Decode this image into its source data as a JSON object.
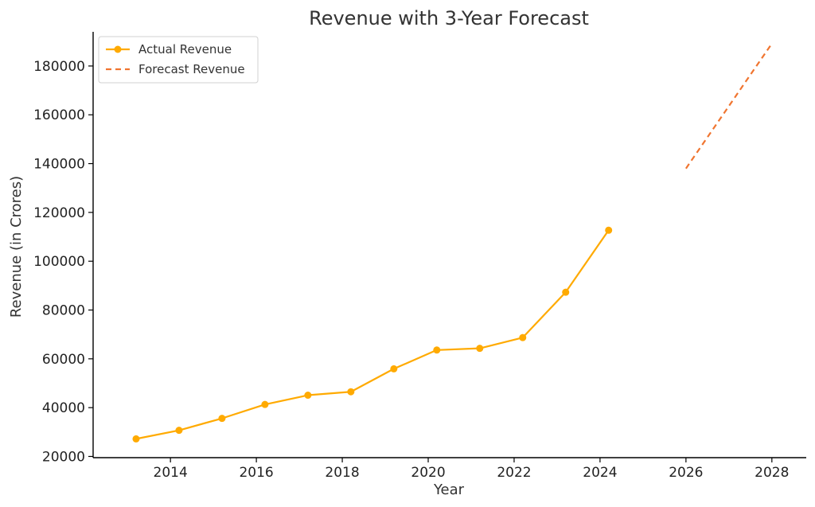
{
  "chart_data": {
    "type": "line",
    "title": "Revenue with 3-Year Forecast",
    "xlabel": "Year",
    "ylabel": "Revenue (in Crores)",
    "xlim": [
      2012.2,
      2028.8
    ],
    "ylim": [
      19500,
      194000
    ],
    "x_ticks": [
      "2014",
      "2016",
      "2018",
      "2020",
      "2022",
      "2024",
      "2026",
      "2028"
    ],
    "y_ticks": [
      "20000",
      "40000",
      "60000",
      "80000",
      "100000",
      "120000",
      "140000",
      "160000",
      "180000"
    ],
    "grid": false,
    "legend_position": "top-left",
    "series": [
      {
        "name": "Actual Revenue",
        "style": "solid-with-markers",
        "color": "#FFAA00",
        "x": [
          2013.2,
          2014.2,
          2015.2,
          2016.2,
          2017.2,
          2018.2,
          2019.2,
          2020.2,
          2021.2,
          2022.2,
          2023.2,
          2024.2
        ],
        "y": [
          27200,
          30700,
          35600,
          41300,
          45100,
          46500,
          55900,
          63600,
          64300,
          68700,
          87300,
          112700
        ]
      },
      {
        "name": "Forecast Revenue",
        "style": "dashed",
        "color": "#F07530",
        "x": [
          2026.0,
          2027.0,
          2028.0
        ],
        "y": [
          138000,
          163600,
          189200
        ]
      }
    ]
  }
}
